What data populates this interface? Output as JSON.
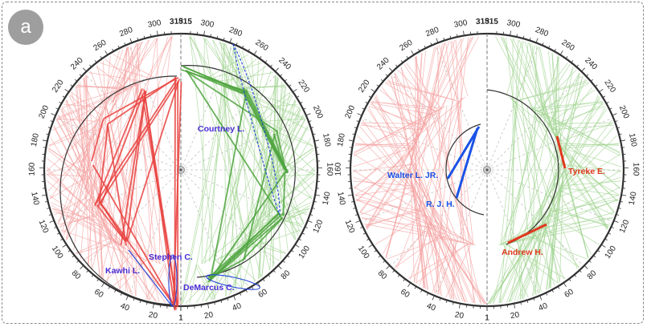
{
  "panel_label": "a",
  "colors": {
    "red": "#e8423f",
    "red_light": "#f4a1a0",
    "red_dark": "#c43232",
    "green": "#4ea43e",
    "green_light": "#9fd38f",
    "green_dark": "#3c8a2e",
    "blue": "#2244dd",
    "label_blue": "#4a2ad6",
    "highlight_blue": "#1a52e6",
    "highlight_red": "#e0391f",
    "axis": "#333333"
  },
  "ring_ticks": [
    "1",
    "20",
    "40",
    "60",
    "80",
    "100",
    "120",
    "140",
    "160",
    "180",
    "200",
    "220",
    "240",
    "260",
    "280",
    "300",
    "315"
  ],
  "left_diagram": {
    "labels": [
      {
        "text": "Courtney L.",
        "color": "label_blue"
      },
      {
        "text": "Stephen C.",
        "color": "label_blue"
      },
      {
        "text": "Kawhi L.",
        "color": "label_blue"
      },
      {
        "text": "DeMarcus C.",
        "color": "label_blue"
      }
    ]
  },
  "right_diagram": {
    "labels": [
      {
        "text": "Walter L. JR.",
        "color": "highlight_blue"
      },
      {
        "text": "R. J. H.",
        "color": "highlight_blue"
      },
      {
        "text": "Tyreke E.",
        "color": "highlight_red"
      },
      {
        "text": "Andrew H.",
        "color": "highlight_red"
      }
    ]
  }
}
